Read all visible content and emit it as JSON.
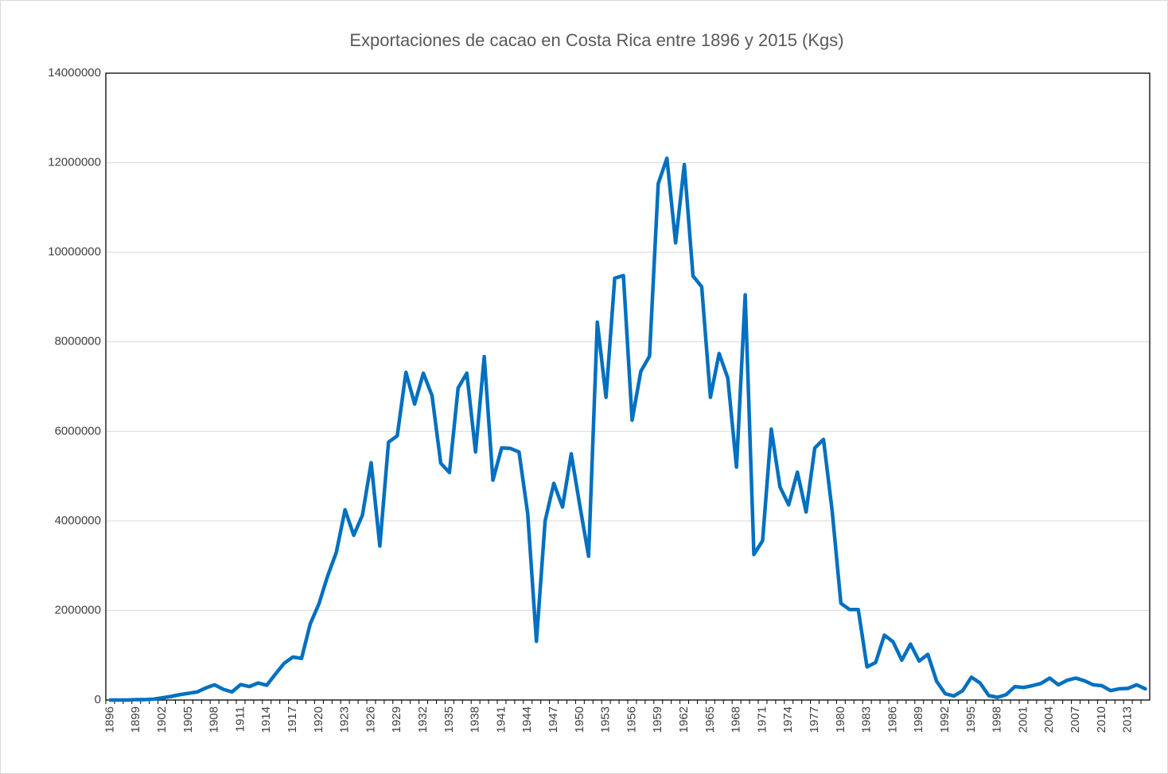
{
  "chart_data": {
    "type": "line",
    "title": "Exportaciones de cacao en Costa Rica entre 1896 y 2015 (Kgs)",
    "categories": [
      "1896",
      null,
      null,
      "1899",
      null,
      null,
      "1902",
      null,
      null,
      "1905",
      null,
      null,
      "1908",
      null,
      null,
      "1911",
      null,
      null,
      "1914",
      null,
      null,
      "1917",
      null,
      null,
      "1920",
      null,
      null,
      "1923",
      null,
      null,
      "1926",
      null,
      null,
      "1929",
      null,
      null,
      "1932",
      null,
      null,
      "1935",
      null,
      null,
      "1938",
      null,
      null,
      "1941",
      null,
      null,
      "1944",
      null,
      null,
      "1947",
      null,
      null,
      "1950",
      null,
      null,
      "1953",
      null,
      null,
      "1956",
      null,
      null,
      "1959",
      null,
      null,
      "1962",
      null,
      null,
      "1965",
      null,
      null,
      "1968",
      null,
      null,
      "1971",
      null,
      null,
      "1974",
      null,
      null,
      "1977",
      null,
      null,
      "1980",
      null,
      null,
      "1983",
      null,
      null,
      "1986",
      null,
      null,
      "1989",
      null,
      null,
      "1992",
      null,
      null,
      "1995",
      null,
      null,
      "1998",
      null,
      null,
      "2001",
      null,
      null,
      "2004",
      null,
      null,
      "2007",
      null,
      null,
      "2010",
      null,
      null,
      "2013",
      null,
      null
    ],
    "values": [
      0,
      0,
      0,
      10000,
      10000,
      20000,
      50000,
      80000,
      120000,
      150000,
      180000,
      270000,
      340000,
      240000,
      180000,
      345000,
      300000,
      380000,
      330000,
      580000,
      820000,
      960000,
      930000,
      1700000,
      2150000,
      2770000,
      3300000,
      4250000,
      3680000,
      4130000,
      5300000,
      3440000,
      5760000,
      5900000,
      7320000,
      6610000,
      7300000,
      6800000,
      5290000,
      5080000,
      6970000,
      7300000,
      5540000,
      7670000,
      4910000,
      5630000,
      5620000,
      5540000,
      4160000,
      1310000,
      4000000,
      4840000,
      4310000,
      5500000,
      4330000,
      3210000,
      8440000,
      6760000,
      9420000,
      9480000,
      6250000,
      7340000,
      7680000,
      11530000,
      12100000,
      10210000,
      11960000,
      9470000,
      9230000,
      6760000,
      7740000,
      7190000,
      5200000,
      9050000,
      3250000,
      3560000,
      6050000,
      4760000,
      4360000,
      5090000,
      4200000,
      5630000,
      5820000,
      4220000,
      2160000,
      2020000,
      2020000,
      740000,
      840000,
      1450000,
      1300000,
      890000,
      1250000,
      870000,
      1020000,
      420000,
      140000,
      90000,
      210000,
      510000,
      380000,
      100000,
      60000,
      120000,
      300000,
      280000,
      320000,
      370000,
      490000,
      340000,
      440000,
      490000,
      430000,
      340000,
      320000,
      210000,
      250000,
      260000,
      340000,
      250000
    ],
    "color": "#0070c0",
    "ylim": [
      0,
      14000000
    ],
    "yticks": [
      0,
      2000000,
      4000000,
      6000000,
      8000000,
      10000000,
      12000000,
      14000000
    ],
    "grid": true
  }
}
